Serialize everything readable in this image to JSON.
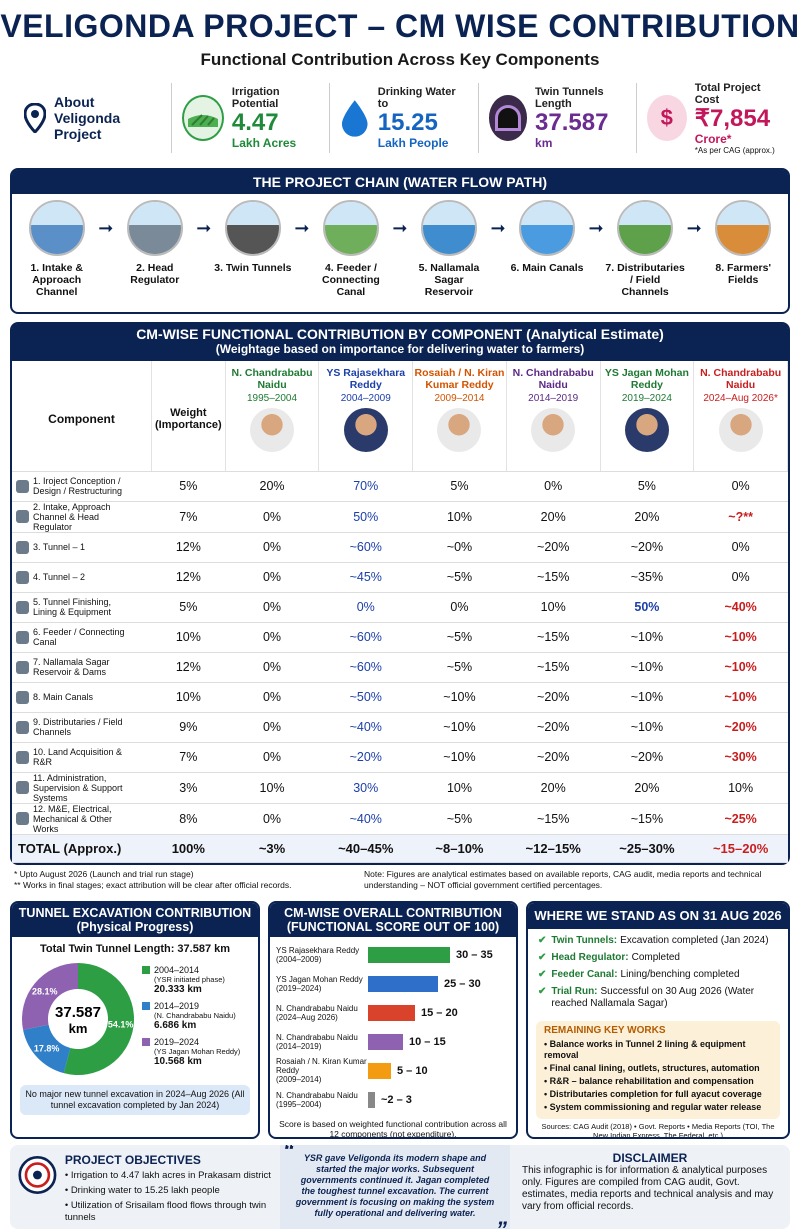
{
  "header": {
    "title": "VELIGONDA PROJECT – CM WISE CONTRIBUTION",
    "subtitle": "Functional Contribution Across Key Components"
  },
  "about": {
    "label": "About Veligonda Project",
    "stats": [
      {
        "label": "Irrigation Potential",
        "value": "4.47",
        "unit": "Lakh Acres",
        "color": "#1e8a3a"
      },
      {
        "label": "Drinking Water to",
        "value": "15.25",
        "unit": "Lakh People",
        "color": "#1565c0"
      },
      {
        "label": "Twin Tunnels Length",
        "value": "37.587",
        "unit": "km",
        "color": "#6a2c91"
      },
      {
        "label": "Total Project Cost",
        "value": "₹7,854",
        "unit": "Crore*",
        "note": "*As per CAG (approx.)",
        "color": "#c2185b"
      }
    ]
  },
  "chain": {
    "title": "THE PROJECT CHAIN (WATER FLOW PATH)",
    "steps": [
      "1. Intake & Approach Channel",
      "2. Head Regulator",
      "3. Twin Tunnels",
      "4. Feeder / Connecting Canal",
      "5. Nallamala Sagar Reservoir",
      "6. Main Canals",
      "7. Distributaries / Field Channels",
      "8. Farmers' Fields"
    ]
  },
  "table": {
    "title": "CM-WISE FUNCTIONAL CONTRIBUTION BY COMPONENT (Analytical Estimate)",
    "subtitle": "(Weightage based on importance for delivering water to farmers)",
    "col_component": "Component",
    "col_weight": "Weight (Importance)",
    "cms": [
      {
        "name": "N. Chandrababu Naidu",
        "years": "1995–2004",
        "color": "#1e7a33"
      },
      {
        "name": "YS Rajasekhara Reddy",
        "years": "2004–2009",
        "color": "#1c3fa8"
      },
      {
        "name": "Rosaiah / N. Kiran Kumar Reddy",
        "years": "2009–2014",
        "color": "#d35400"
      },
      {
        "name": "N. Chandrababu Naidu",
        "years": "2014–2019",
        "color": "#5b2a86"
      },
      {
        "name": "YS Jagan Mohan Reddy",
        "years": "2019–2024",
        "color": "#1e7a33"
      },
      {
        "name": "N. Chandrababu Naidu",
        "years": "2024–Aug 2026*",
        "color": "#c81e1e"
      }
    ],
    "rows": [
      {
        "c": "1. Iroject Conception / Design / Restructuring",
        "w": "5%",
        "v": [
          "20%",
          "70%",
          "5%",
          "0%",
          "5%",
          "0%"
        ]
      },
      {
        "c": "2. Intake, Approach Channel & Head Regulator",
        "w": "7%",
        "v": [
          "0%",
          "50%",
          "10%",
          "20%",
          "20%",
          "~?**"
        ]
      },
      {
        "c": "3. Tunnel – 1",
        "w": "12%",
        "v": [
          "0%",
          "~60%",
          "~0%",
          "~20%",
          "~20%",
          "0%"
        ]
      },
      {
        "c": "4. Tunnel – 2",
        "w": "12%",
        "v": [
          "0%",
          "~45%",
          "~5%",
          "~15%",
          "~35%",
          "0%"
        ]
      },
      {
        "c": "5. Tunnel Finishing, Lining & Equipment",
        "w": "5%",
        "v": [
          "0%",
          "0%",
          "0%",
          "10%",
          "50%",
          "~40%"
        ]
      },
      {
        "c": "6. Feeder / Connecting Canal",
        "w": "10%",
        "v": [
          "0%",
          "~60%",
          "~5%",
          "~15%",
          "~10%",
          "~10%"
        ]
      },
      {
        "c": "7. Nallamala Sagar Reservoir & Dams",
        "w": "12%",
        "v": [
          "0%",
          "~60%",
          "~5%",
          "~15%",
          "~10%",
          "~10%"
        ]
      },
      {
        "c": "8. Main Canals",
        "w": "10%",
        "v": [
          "0%",
          "~50%",
          "~10%",
          "~20%",
          "~10%",
          "~10%"
        ]
      },
      {
        "c": "9. Distributaries / Field Channels",
        "w": "9%",
        "v": [
          "0%",
          "~40%",
          "~10%",
          "~20%",
          "~10%",
          "~20%"
        ]
      },
      {
        "c": "10. Land Acquisition & R&R",
        "w": "7%",
        "v": [
          "0%",
          "~20%",
          "~10%",
          "~20%",
          "~20%",
          "~30%"
        ]
      },
      {
        "c": "11. Administration, Supervision & Support Systems",
        "w": "3%",
        "v": [
          "10%",
          "30%",
          "10%",
          "20%",
          "20%",
          "10%"
        ]
      },
      {
        "c": "12. M&E, Electrical, Mechanical & Other Works",
        "w": "8%",
        "v": [
          "0%",
          "~40%",
          "~5%",
          "~15%",
          "~15%",
          "~25%"
        ]
      }
    ],
    "total": {
      "label": "TOTAL (Approx.)",
      "w": "100%",
      "v": [
        "~3%",
        "~40–45%",
        "~8–10%",
        "~12–15%",
        "~25–30%",
        "~15–20%"
      ]
    }
  },
  "notes": {
    "left1": "* Upto August 2026 (Launch and trial run stage)",
    "left2": "** Works in final stages; exact attribution will be clear after official records.",
    "right": "Note: Figures are analytical estimates based on available reports, CAG audit, media reports and technical understanding – NOT official government certified percentages."
  },
  "tunnel": {
    "title": "TUNNEL EXCAVATION CONTRIBUTION",
    "subtitle": "(Physical Progress)",
    "total": "Total Twin Tunnel Length: 37.587 km",
    "center": "37.587",
    "center_unit": "km",
    "chart_data": {
      "type": "pie",
      "slices": [
        {
          "label": "2004–2014",
          "sub": "(YSR initiated phase)",
          "km": "20.333 km",
          "pct": 54.1,
          "pct_label": "54.1%",
          "color": "#2e9e45"
        },
        {
          "label": "2014–2019",
          "sub": "(N. Chandrababu Naidu)",
          "km": "6.686 km",
          "pct": 17.8,
          "pct_label": "17.8%",
          "color": "#2f7fc9"
        },
        {
          "label": "2019–2024",
          "sub": "(YS Jagan Mohan Reddy)",
          "km": "10.568 km",
          "pct": 28.1,
          "pct_label": "28.1%",
          "color": "#8e62b0"
        }
      ]
    },
    "note": "No major new tunnel excavation in 2024–Aug 2026 (All tunnel excavation completed by Jan 2024)"
  },
  "overall": {
    "title": "CM-WISE OVERALL CONTRIBUTION",
    "subtitle": "(FUNCTIONAL SCORE OUT OF 100)",
    "chart_data": {
      "type": "bar",
      "orientation": "horizontal",
      "xlim": [
        0,
        35
      ],
      "bars": [
        {
          "name": "YS Rajasekhara Reddy",
          "years": "(2004–2009)",
          "low": 30,
          "high": 35,
          "label": "30 – 35",
          "color": "#2e9e45"
        },
        {
          "name": "YS Jagan Mohan Reddy",
          "years": "(2019–2024)",
          "low": 25,
          "high": 30,
          "label": "25 – 30",
          "color": "#2f6fc9"
        },
        {
          "name": "N. Chandrababu Naidu",
          "years": "(2024–Aug 2026)",
          "low": 15,
          "high": 20,
          "label": "15 – 20",
          "color": "#d9432c"
        },
        {
          "name": "N. Chandrababu Naidu",
          "years": "(2014–2019)",
          "low": 10,
          "high": 15,
          "label": "10 – 15",
          "color": "#8e62b0"
        },
        {
          "name": "Rosaiah / N. Kiran Kumar Reddy",
          "years": "(2009–2014)",
          "low": 5,
          "high": 10,
          "label": "5 – 10",
          "color": "#f39c12"
        },
        {
          "name": "N. Chandrababu Naidu",
          "years": "(1995–2004)",
          "low": 2,
          "high": 3,
          "label": "~2 – 3",
          "color": "#888888"
        }
      ]
    },
    "note": "Score is based on weighted functional contribution across all 12 components (not expenditure)."
  },
  "status": {
    "title": "WHERE WE STAND AS ON 31 AUG 2026",
    "items": [
      {
        "k": "Twin Tunnels:",
        "v": "Excavation completed (Jan 2024)"
      },
      {
        "k": "Head Regulator:",
        "v": "Completed"
      },
      {
        "k": "Feeder Canal:",
        "v": "Lining/benching completed"
      },
      {
        "k": "Trial Run:",
        "v": "Successful on 30 Aug 2026 (Water reached Nallamala Sagar)"
      }
    ],
    "remaining_title": "REMAINING KEY WORKS",
    "remaining": [
      "Balance works in Tunnel 2 lining & equipment removal",
      "Final canal lining, outlets, structures, automation",
      "R&R – balance rehabilitation and compensation",
      "Distributaries completion for full ayacut coverage",
      "System commissioning and regular water release"
    ],
    "sources": "Sources: CAG Audit (2018) • Govt. Reports • Media Reports (TOI, The New Indian Express, The Federal, etc.)"
  },
  "objectives": {
    "title": "PROJECT OBJECTIVES",
    "items": [
      "Irrigation to 4.47 lakh acres in Prakasam district",
      "Drinking water to 15.25 lakh people",
      "Utilization of Srisailam flood flows through twin tunnels"
    ]
  },
  "quote": "YSR gave Veligonda its modern shape and started the major works. Subsequent governments continued it. Jagan completed the toughest tunnel excavation. The current government is focusing on making the system fully operational and delivering water.",
  "disclaimer": {
    "title": "DISCLAIMER",
    "text": "This infographic is for information & analytical purposes only. Figures are compiled from CAG audit, Govt. estimates, media reports and technical analysis and may vary from official records."
  }
}
